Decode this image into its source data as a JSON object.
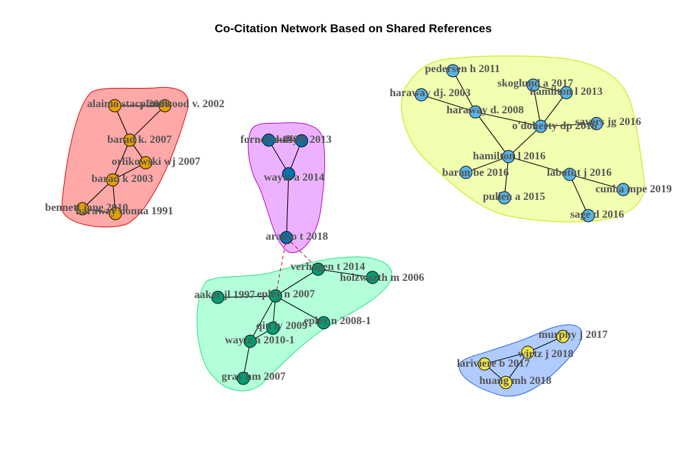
{
  "title": "Co-Citation Network Based on Shared References",
  "clusters": [
    {
      "id": "red",
      "hull_fill": "#FFA8A8",
      "hull_stroke": "#E00000",
      "node_color": "#E69F00",
      "nodes": [
        {
          "id": "alaimo",
          "label": "alaimo stacy 2008"
        },
        {
          "id": "plumwood",
          "label": "plumwood v. 2002"
        },
        {
          "id": "barad2007",
          "label": "barad k. 2007"
        },
        {
          "id": "orlikowski",
          "label": "orlikowski wj 2007"
        },
        {
          "id": "barad2003",
          "label": "barad k 2003"
        },
        {
          "id": "bennett",
          "label": "bennett jane 2010"
        },
        {
          "id": "haraway1991",
          "label": "haraway donna 1991"
        }
      ]
    },
    {
      "id": "purple",
      "hull_fill": "#EDB2FF",
      "hull_stroke": "#B000D0",
      "node_color": "#0072B2",
      "nodes": [
        {
          "id": "fornell",
          "label": "fornell c 1981"
        },
        {
          "id": "duffy",
          "label": "duffy k 2013"
        },
        {
          "id": "waytz2014",
          "label": "waytz a 2014"
        },
        {
          "id": "araujo",
          "label": "araujo t 2018"
        }
      ]
    },
    {
      "id": "green",
      "hull_fill": "#B3FFD9",
      "hull_stroke": "#20E080",
      "node_color": "#009E73",
      "nodes": [
        {
          "id": "verhagen",
          "label": "verhagen t 2014"
        },
        {
          "id": "holzwarth",
          "label": "holzwarth m 2006"
        },
        {
          "id": "aaker",
          "label": "aaker jl 1997"
        },
        {
          "id": "epley2007",
          "label": "epley n 2007"
        },
        {
          "id": "epley2008",
          "label": "epley n 2008-1"
        },
        {
          "id": "qiu",
          "label": "qiu ly 2009"
        },
        {
          "id": "waytz2010",
          "label": "waytz a 2010-1"
        },
        {
          "id": "gray",
          "label": "gray hm 2007"
        }
      ]
    },
    {
      "id": "yellow",
      "hull_fill": "#F0FFB0",
      "hull_stroke": "#D0E000",
      "node_color": "#56B4E9",
      "nodes": [
        {
          "id": "pedersen",
          "label": "pedersen h 2011"
        },
        {
          "id": "harawaydj",
          "label": "haraway dj. 2003"
        },
        {
          "id": "skoglund",
          "label": "skoglund a 2017"
        },
        {
          "id": "hamilton2013",
          "label": "hamilton l 2013"
        },
        {
          "id": "harawayd2008",
          "label": "haraway d. 2008"
        },
        {
          "id": "odoherty",
          "label": "o'doherty dp 2016"
        },
        {
          "id": "sayers",
          "label": "sayers jg 2016"
        },
        {
          "id": "hamilton2016",
          "label": "hamilton l 2016"
        },
        {
          "id": "baran",
          "label": "baran be 2016"
        },
        {
          "id": "labatut",
          "label": "labatut j 2016"
        },
        {
          "id": "cunha",
          "label": "cunha mpe 2019"
        },
        {
          "id": "pullen",
          "label": "pullen a 2015"
        },
        {
          "id": "sage",
          "label": "sage d 2016"
        }
      ]
    },
    {
      "id": "blue",
      "hull_fill": "#B0CCFF",
      "hull_stroke": "#2060E0",
      "node_color": "#F0E442",
      "nodes": [
        {
          "id": "murphy",
          "label": "murphy j 2017"
        },
        {
          "id": "wirtz",
          "label": "wirtz j 2018"
        },
        {
          "id": "lariviere",
          "label": "lariviere b 2017"
        },
        {
          "id": "huang",
          "label": "huang mh 2018"
        }
      ]
    }
  ],
  "edges": [
    [
      "alaimo",
      "barad2007"
    ],
    [
      "plumwood",
      "barad2007"
    ],
    [
      "alaimo",
      "plumwood"
    ],
    [
      "barad2007",
      "orlikowski"
    ],
    [
      "barad2007",
      "barad2003"
    ],
    [
      "orlikowski",
      "barad2003"
    ],
    [
      "barad2003",
      "bennett"
    ],
    [
      "barad2003",
      "haraway1991"
    ],
    [
      "bennett",
      "haraway1991"
    ],
    [
      "fornell",
      "waytz2014"
    ],
    [
      "duffy",
      "waytz2014"
    ],
    [
      "fornell",
      "duffy"
    ],
    [
      "waytz2014",
      "araujo"
    ],
    [
      "verhagen",
      "epley2007"
    ],
    [
      "verhagen",
      "holzwarth"
    ],
    [
      "aaker",
      "epley2007"
    ],
    [
      "epley2007",
      "epley2008"
    ],
    [
      "epley2007",
      "qiu"
    ],
    [
      "epley2007",
      "waytz2010"
    ],
    [
      "qiu",
      "waytz2010"
    ],
    [
      "waytz2010",
      "gray"
    ],
    [
      "pedersen",
      "harawayd2008"
    ],
    [
      "harawaydj",
      "harawayd2008"
    ],
    [
      "harawayd2008",
      "hamilton2016"
    ],
    [
      "harawayd2008",
      "odoherty"
    ],
    [
      "skoglund",
      "odoherty"
    ],
    [
      "hamilton2013",
      "odoherty"
    ],
    [
      "skoglund",
      "hamilton2013"
    ],
    [
      "odoherty",
      "sayers"
    ],
    [
      "odoherty",
      "hamilton2016"
    ],
    [
      "hamilton2016",
      "baran"
    ],
    [
      "hamilton2016",
      "pullen"
    ],
    [
      "hamilton2016",
      "labatut"
    ],
    [
      "labatut",
      "cunha"
    ],
    [
      "labatut",
      "sage"
    ],
    [
      "lariviere",
      "huang"
    ],
    [
      "huang",
      "wirtz"
    ],
    [
      "wirtz",
      "murphy"
    ],
    [
      "lariviere",
      "wirtz"
    ]
  ],
  "inter_cluster_edges": [
    [
      "araujo",
      "epley2007"
    ],
    [
      "araujo",
      "verhagen"
    ]
  ]
}
